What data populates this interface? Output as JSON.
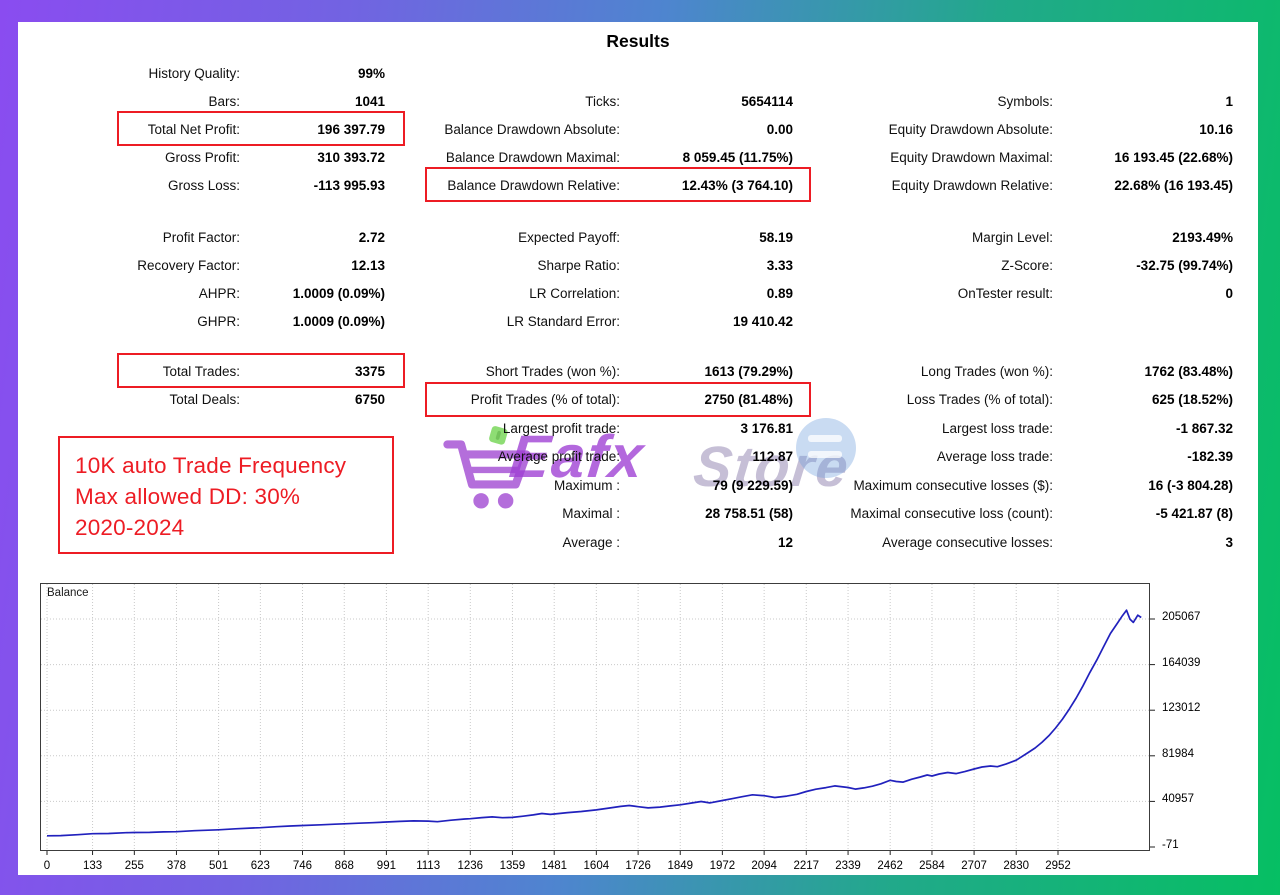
{
  "title": "Results",
  "annotation": {
    "lines": [
      "10K auto Trade Frequency",
      "Max allowed DD: 30%",
      "2020-2024"
    ]
  },
  "watermark": {
    "brand_primary": "Eafx",
    "brand_secondary": "Store",
    "cart_icon": "shopping-cart-icon"
  },
  "colors": {
    "highlight_red": "#ed1c24",
    "curve_blue": "#2121bd",
    "watermark_purple": "#a046d2",
    "watermark_green": "#6fd44e",
    "frame_purple": "#8a4cf0",
    "frame_green": "#06bf63"
  },
  "stats": [
    {
      "col": 0,
      "group": 0,
      "row": 0,
      "label": "History Quality:",
      "value": "99%"
    },
    {
      "col": 0,
      "group": 0,
      "row": 1,
      "label": "Bars:",
      "value": "1041"
    },
    {
      "col": 0,
      "group": 0,
      "row": 2,
      "label": "Total Net Profit:",
      "value": "196 397.79",
      "boxed": true
    },
    {
      "col": 0,
      "group": 0,
      "row": 3,
      "label": "Gross Profit:",
      "value": "310 393.72"
    },
    {
      "col": 0,
      "group": 0,
      "row": 4,
      "label": "Gross Loss:",
      "value": "-113 995.93"
    },
    {
      "col": 0,
      "group": 1,
      "row": 0,
      "label": "Profit Factor:",
      "value": "2.72"
    },
    {
      "col": 0,
      "group": 1,
      "row": 1,
      "label": "Recovery Factor:",
      "value": "12.13"
    },
    {
      "col": 0,
      "group": 1,
      "row": 2,
      "label": "AHPR:",
      "value": "1.0009 (0.09%)"
    },
    {
      "col": 0,
      "group": 1,
      "row": 3,
      "label": "GHPR:",
      "value": "1.0009 (0.09%)"
    },
    {
      "col": 0,
      "group": 2,
      "row": 0,
      "label": "Total Trades:",
      "value": "3375",
      "boxed": true
    },
    {
      "col": 0,
      "group": 2,
      "row": 1,
      "label": "Total Deals:",
      "value": "6750"
    },
    {
      "col": 1,
      "group": 0,
      "row": 1,
      "label": "Ticks:",
      "value": "5654114"
    },
    {
      "col": 1,
      "group": 0,
      "row": 2,
      "label": "Balance Drawdown Absolute:",
      "value": "0.00"
    },
    {
      "col": 1,
      "group": 0,
      "row": 3,
      "label": "Balance Drawdown Maximal:",
      "value": "8 059.45 (11.75%)"
    },
    {
      "col": 1,
      "group": 0,
      "row": 4,
      "label": "Balance Drawdown Relative:",
      "value": "12.43% (3 764.10)",
      "boxed": true
    },
    {
      "col": 1,
      "group": 1,
      "row": 0,
      "label": "Expected Payoff:",
      "value": "58.19"
    },
    {
      "col": 1,
      "group": 1,
      "row": 1,
      "label": "Sharpe Ratio:",
      "value": "3.33"
    },
    {
      "col": 1,
      "group": 1,
      "row": 2,
      "label": "LR Correlation:",
      "value": "0.89"
    },
    {
      "col": 1,
      "group": 1,
      "row": 3,
      "label": "LR Standard Error:",
      "value": "19 410.42"
    },
    {
      "col": 1,
      "group": 2,
      "row": 0,
      "label": "Short Trades (won %):",
      "value": "1613 (79.29%)"
    },
    {
      "col": 1,
      "group": 2,
      "row": 1,
      "label": "Profit Trades (% of total):",
      "value": "2750 (81.48%)",
      "boxed": true
    },
    {
      "col": 1,
      "group": 2,
      "row": 2,
      "label": "Largest profit trade:",
      "value": "3 176.81"
    },
    {
      "col": 1,
      "group": 2,
      "row": 3,
      "label": "Average profit trade:",
      "value": "112.87"
    },
    {
      "col": 1,
      "group": 2,
      "row": 4,
      "label": "Maximum :",
      "value": "79 (9 229.59)"
    },
    {
      "col": 1,
      "group": 2,
      "row": 5,
      "label": "Maximal :",
      "value": "28 758.51 (58)"
    },
    {
      "col": 1,
      "group": 2,
      "row": 6,
      "label": "Average :",
      "value": "12"
    },
    {
      "col": 2,
      "group": 0,
      "row": 1,
      "label": "Symbols:",
      "value": "1"
    },
    {
      "col": 2,
      "group": 0,
      "row": 2,
      "label": "Equity Drawdown Absolute:",
      "value": "10.16"
    },
    {
      "col": 2,
      "group": 0,
      "row": 3,
      "label": "Equity Drawdown Maximal:",
      "value": "16 193.45 (22.68%)"
    },
    {
      "col": 2,
      "group": 0,
      "row": 4,
      "label": "Equity Drawdown Relative:",
      "value": "22.68% (16 193.45)"
    },
    {
      "col": 2,
      "group": 1,
      "row": 0,
      "label": "Margin Level:",
      "value": "2193.49%"
    },
    {
      "col": 2,
      "group": 1,
      "row": 1,
      "label": "Z-Score:",
      "value": "-32.75 (99.74%)"
    },
    {
      "col": 2,
      "group": 1,
      "row": 2,
      "label": "OnTester result:",
      "value": "0"
    },
    {
      "col": 2,
      "group": 2,
      "row": 0,
      "label": "Long Trades (won %):",
      "value": "1762 (83.48%)"
    },
    {
      "col": 2,
      "group": 2,
      "row": 1,
      "label": "Loss Trades (% of total):",
      "value": "625 (18.52%)"
    },
    {
      "col": 2,
      "group": 2,
      "row": 2,
      "label": "Largest loss trade:",
      "value": "-1 867.32"
    },
    {
      "col": 2,
      "group": 2,
      "row": 3,
      "label": "Average loss trade:",
      "value": "-182.39"
    },
    {
      "col": 2,
      "group": 2,
      "row": 4,
      "label": "Maximum consecutive losses ($):",
      "value": "16 (-3 804.28)"
    },
    {
      "col": 2,
      "group": 2,
      "row": 5,
      "label": "Maximal consecutive loss (count):",
      "value": "-5 421.87 (8)"
    },
    {
      "col": 2,
      "group": 2,
      "row": 6,
      "label": "Average consecutive losses:",
      "value": "3"
    }
  ],
  "chart_data": {
    "type": "line",
    "title": "Balance",
    "xlabel": "",
    "ylabel": "",
    "x_tick_labels": [
      0,
      133,
      255,
      378,
      501,
      623,
      746,
      868,
      991,
      1113,
      1236,
      1359,
      1481,
      1604,
      1726,
      1849,
      1972,
      2094,
      2217,
      2339,
      2462,
      2584,
      2707,
      2830,
      2952
    ],
    "y_tick_labels": [
      205067,
      164039,
      123012,
      81984,
      40957,
      -71
    ],
    "x_domain": [
      0,
      3250
    ],
    "y_domain": [
      -71,
      237000
    ],
    "grid": "dotted",
    "legend_position": "none",
    "initial_balance": 10000,
    "final_balance": 206400,
    "line_color": "#2121bd",
    "points": [
      [
        0,
        10000
      ],
      [
        40,
        10200
      ],
      [
        90,
        11000
      ],
      [
        133,
        11900
      ],
      [
        180,
        12100
      ],
      [
        230,
        12800
      ],
      [
        255,
        13000
      ],
      [
        300,
        13100
      ],
      [
        340,
        13500
      ],
      [
        378,
        13700
      ],
      [
        430,
        14600
      ],
      [
        470,
        15000
      ],
      [
        501,
        15400
      ],
      [
        550,
        16300
      ],
      [
        600,
        17000
      ],
      [
        623,
        17300
      ],
      [
        670,
        18200
      ],
      [
        710,
        18800
      ],
      [
        746,
        19300
      ],
      [
        800,
        19900
      ],
      [
        840,
        20400
      ],
      [
        868,
        20800
      ],
      [
        910,
        21300
      ],
      [
        950,
        21800
      ],
      [
        991,
        22400
      ],
      [
        1030,
        23000
      ],
      [
        1070,
        23400
      ],
      [
        1113,
        23200
      ],
      [
        1140,
        22700
      ],
      [
        1180,
        24000
      ],
      [
        1220,
        25100
      ],
      [
        1236,
        25400
      ],
      [
        1270,
        26400
      ],
      [
        1300,
        27000
      ],
      [
        1330,
        26300
      ],
      [
        1359,
        26600
      ],
      [
        1390,
        27600
      ],
      [
        1420,
        28800
      ],
      [
        1445,
        30100
      ],
      [
        1470,
        29300
      ],
      [
        1481,
        29600
      ],
      [
        1520,
        30900
      ],
      [
        1560,
        31900
      ],
      [
        1604,
        33300
      ],
      [
        1640,
        34900
      ],
      [
        1675,
        36500
      ],
      [
        1700,
        37300
      ],
      [
        1726,
        36200
      ],
      [
        1755,
        35100
      ],
      [
        1790,
        35800
      ],
      [
        1820,
        36900
      ],
      [
        1849,
        37900
      ],
      [
        1880,
        39400
      ],
      [
        1910,
        40900
      ],
      [
        1935,
        39600
      ],
      [
        1972,
        41800
      ],
      [
        2000,
        43400
      ],
      [
        2030,
        45200
      ],
      [
        2060,
        46900
      ],
      [
        2094,
        46100
      ],
      [
        2125,
        44500
      ],
      [
        2160,
        45700
      ],
      [
        2190,
        47300
      ],
      [
        2217,
        49900
      ],
      [
        2245,
        51900
      ],
      [
        2275,
        53400
      ],
      [
        2300,
        54900
      ],
      [
        2339,
        53500
      ],
      [
        2360,
        52000
      ],
      [
        2385,
        53100
      ],
      [
        2410,
        54600
      ],
      [
        2435,
        56800
      ],
      [
        2462,
        59900
      ],
      [
        2480,
        58900
      ],
      [
        2500,
        58300
      ],
      [
        2525,
        60900
      ],
      [
        2550,
        62900
      ],
      [
        2570,
        64700
      ],
      [
        2584,
        63800
      ],
      [
        2605,
        65600
      ],
      [
        2630,
        67000
      ],
      [
        2655,
        66000
      ],
      [
        2680,
        67800
      ],
      [
        2707,
        70100
      ],
      [
        2730,
        71900
      ],
      [
        2755,
        72800
      ],
      [
        2775,
        72200
      ],
      [
        2800,
        74500
      ],
      [
        2830,
        78000
      ],
      [
        2860,
        84000
      ],
      [
        2885,
        89000
      ],
      [
        2905,
        94000
      ],
      [
        2925,
        100000
      ],
      [
        2945,
        107000
      ],
      [
        2965,
        115000
      ],
      [
        2985,
        124000
      ],
      [
        3005,
        134000
      ],
      [
        3025,
        145000
      ],
      [
        3045,
        157000
      ],
      [
        3065,
        168000
      ],
      [
        3085,
        180000
      ],
      [
        3105,
        192000
      ],
      [
        3125,
        201000
      ],
      [
        3140,
        208000
      ],
      [
        3152,
        213000
      ],
      [
        3162,
        205000
      ],
      [
        3172,
        202000
      ],
      [
        3185,
        208500
      ],
      [
        3195,
        206400
      ]
    ]
  }
}
